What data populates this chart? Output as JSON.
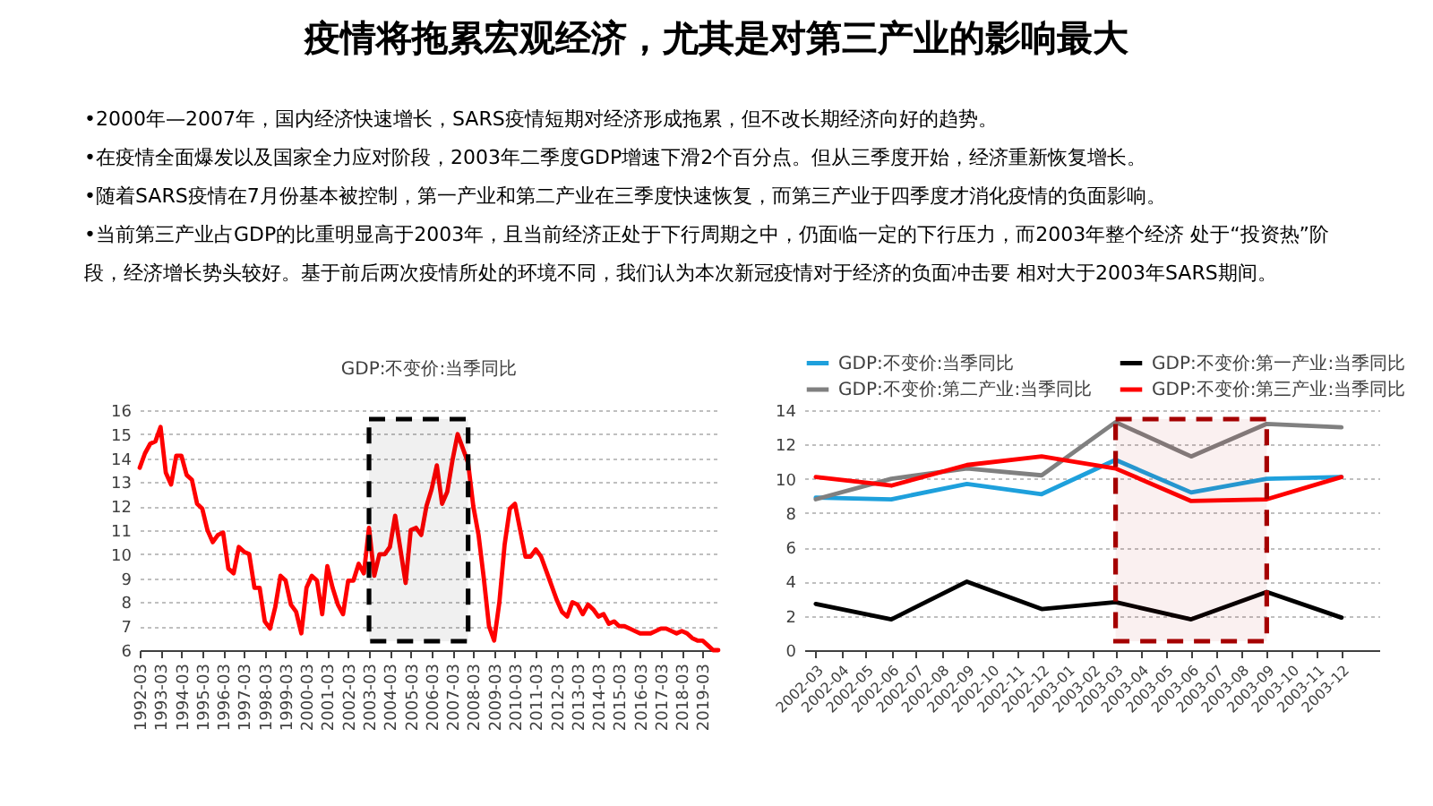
{
  "chart_data": [
    {
      "type": "other",
      "title": "疫情将拖累宏观经济，尤其是对第三产业的影响最大",
      "annotations": [
        "•2000年—2007年，国内经济快速增长，SARS疫情短期对经济形成拖累，但不改长期经济向好的趋势。",
        "•在疫情全面爆发以及国家全力应对阶段，2003年二季度GDP增速下滑2个百分点。但从三季度开始，经济重新恢复增长。",
        "•随着SARS疫情在7月份基本被控制，第一产业和第二产业在三季度快速恢复，而第三产业于四季度才消化疫情的负面影响。",
        "•当前第三产业占GDP的比重明显高于2003年，且当前经济正处于下行周期之中，仍面临一定的下行压力，而2003年整个经济 处于“投资热”阶段，经济增长势头较好。基于前后两次疫情所处的环境不同，我们认为本次新冠疫情对于经济的负面冲击要 相对大于2003年SARS期间。"
      ]
    },
    {
      "type": "line",
      "title": "GDP:不变价:当季同比",
      "color": "#ff0000",
      "x": [
        "1992-03",
        "1992-06",
        "1992-09",
        "1992-12",
        "1993-03",
        "1993-06",
        "1993-09",
        "1993-12",
        "1994-03",
        "1994-06",
        "1994-09",
        "1994-12",
        "1995-03",
        "1995-06",
        "1995-09",
        "1995-12",
        "1996-03",
        "1996-06",
        "1996-09",
        "1996-12",
        "1997-03",
        "1997-06",
        "1997-09",
        "1997-12",
        "1998-03",
        "1998-06",
        "1998-09",
        "1998-12",
        "1999-03",
        "1999-06",
        "1999-09",
        "1999-12",
        "2000-03",
        "2000-06",
        "2000-09",
        "2000-12",
        "2001-03",
        "2001-06",
        "2001-09",
        "2001-12",
        "2002-03",
        "2002-06",
        "2002-09",
        "2002-12",
        "2003-03",
        "2003-06",
        "2003-09",
        "2003-12",
        "2004-03",
        "2004-06",
        "2004-09",
        "2004-12",
        "2005-03",
        "2005-06",
        "2005-09",
        "2005-12",
        "2006-03",
        "2006-06",
        "2006-09",
        "2006-12",
        "2007-03",
        "2007-06",
        "2007-09",
        "2007-12",
        "2008-03",
        "2008-06",
        "2008-09",
        "2008-12",
        "2009-03",
        "2009-06",
        "2009-09",
        "2009-12",
        "2010-03",
        "2010-06",
        "2010-09",
        "2010-12",
        "2011-03",
        "2011-06",
        "2011-09",
        "2011-12",
        "2012-03",
        "2012-06",
        "2012-09",
        "2012-12",
        "2013-03",
        "2013-06",
        "2013-09",
        "2013-12",
        "2014-03",
        "2014-06",
        "2014-09",
        "2014-12",
        "2015-03",
        "2015-06",
        "2015-09",
        "2015-12",
        "2016-03",
        "2016-06",
        "2016-09",
        "2016-12",
        "2017-03",
        "2017-06",
        "2017-09",
        "2017-12",
        "2018-03",
        "2018-06",
        "2018-09",
        "2018-12",
        "2019-03",
        "2019-06",
        "2019-09",
        "2019-12"
      ],
      "values": [
        13.6,
        14.2,
        14.6,
        14.7,
        15.3,
        13.4,
        12.9,
        14.1,
        14.1,
        13.3,
        13.1,
        12.1,
        11.9,
        11.0,
        10.5,
        10.8,
        10.9,
        9.4,
        9.2,
        10.3,
        10.1,
        10.0,
        8.6,
        8.6,
        7.2,
        6.9,
        7.8,
        9.1,
        8.9,
        7.9,
        7.6,
        6.7,
        8.6,
        9.1,
        8.9,
        7.5,
        9.5,
        8.6,
        7.9,
        7.5,
        8.9,
        8.9,
        9.6,
        9.2,
        11.1,
        9.1,
        10.0,
        10.0,
        10.3,
        11.6,
        10.2,
        8.8,
        11.0,
        11.1,
        10.8,
        12.0,
        12.7,
        13.7,
        12.1,
        12.6,
        13.9,
        15.0,
        14.4,
        13.8,
        12.0,
        10.8,
        9.0,
        7.0,
        6.4,
        8.0,
        10.4,
        11.9,
        12.1,
        11.0,
        9.9,
        9.9,
        10.2,
        9.9,
        9.3,
        8.7,
        8.1,
        7.6,
        7.4,
        8.0,
        7.9,
        7.5,
        7.9,
        7.7,
        7.4,
        7.5,
        7.1,
        7.2,
        7.0,
        7.0,
        6.9,
        6.8,
        6.7,
        6.7,
        6.7,
        6.8,
        6.9,
        6.9,
        6.8,
        6.7,
        6.8,
        6.7,
        6.5,
        6.4,
        6.4,
        6.2,
        6.0,
        6.0
      ],
      "xlim": [
        "1992-03",
        "2019-12"
      ],
      "xticks": [
        "1992-03",
        "1993-03",
        "1994-03",
        "1995-03",
        "1996-03",
        "1997-03",
        "1998-03",
        "1999-03",
        "2000-03",
        "2001-03",
        "2002-03",
        "2003-03",
        "2004-03",
        "2005-03",
        "2006-03",
        "2007-03",
        "2008-03",
        "2009-03",
        "2010-03",
        "2011-03",
        "2012-03",
        "2013-03",
        "2014-03",
        "2015-03",
        "2016-03",
        "2017-03",
        "2018-03",
        "2019-03"
      ],
      "ylim": [
        6,
        16
      ],
      "yticks": [
        6,
        7,
        8,
        9,
        10,
        11,
        12,
        13,
        14,
        15,
        16
      ],
      "grid": "y",
      "bands": [
        {
          "axis": "x",
          "from": "2003-03",
          "to": "2007-12",
          "color": "#000000"
        }
      ]
    },
    {
      "type": "line",
      "series": [
        {
          "name": "GDP:不变价:当季同比",
          "color": "#1ea0dc",
          "x": [
            "2002-03",
            "2002-06",
            "2002-09",
            "2002-12",
            "2003-03",
            "2003-06",
            "2003-09",
            "2003-12"
          ],
          "values": [
            8.9,
            8.8,
            9.7,
            9.1,
            11.1,
            9.2,
            10.0,
            10.1
          ]
        },
        {
          "name": "GDP:不变价:第一产业:当季同比",
          "color": "#000000",
          "x": [
            "2002-03",
            "2002-06",
            "2002-09",
            "2002-12",
            "2003-03",
            "2003-06",
            "2003-09",
            "2003-12"
          ],
          "values": [
            2.7,
            1.8,
            4.0,
            2.4,
            2.8,
            1.8,
            3.4,
            1.9
          ]
        },
        {
          "name": "GDP:不变价:第二产业:当季同比",
          "color": "#808080",
          "x": [
            "2002-03",
            "2002-06",
            "2002-09",
            "2002-12",
            "2003-03",
            "2003-06",
            "2003-09",
            "2003-12"
          ],
          "values": [
            8.8,
            10.0,
            10.6,
            10.2,
            13.3,
            11.3,
            13.2,
            13.0
          ]
        },
        {
          "name": "GDP:不变价:第三产业:当季同比",
          "color": "#ff0000",
          "x": [
            "2002-03",
            "2002-06",
            "2002-09",
            "2002-12",
            "2003-03",
            "2003-06",
            "2003-09",
            "2003-12"
          ],
          "values": [
            10.1,
            9.6,
            10.8,
            11.3,
            10.6,
            8.7,
            8.8,
            10.1
          ]
        }
      ],
      "xlim": [
        "2002-02-15",
        "2004-01-16"
      ],
      "xticks": [
        "2002-03",
        "2002-04",
        "2002-05",
        "2002-06",
        "2002-07",
        "2002-08",
        "2002-09",
        "2002-10",
        "2002-11",
        "2002-12",
        "2003-01",
        "2003-02",
        "2003-03",
        "2003-04",
        "2003-05",
        "2003-06",
        "2003-07",
        "2003-08",
        "2003-09",
        "2003-10",
        "2003-11",
        "2003-12"
      ],
      "ylim": [
        0,
        14
      ],
      "yticks": [
        0,
        2,
        4,
        6,
        8,
        10,
        12,
        14
      ],
      "grid": "y",
      "legend": "top",
      "bands": [
        {
          "axis": "x",
          "from": "2003-03",
          "to": "2003-09",
          "color": "#a50000"
        }
      ]
    }
  ]
}
